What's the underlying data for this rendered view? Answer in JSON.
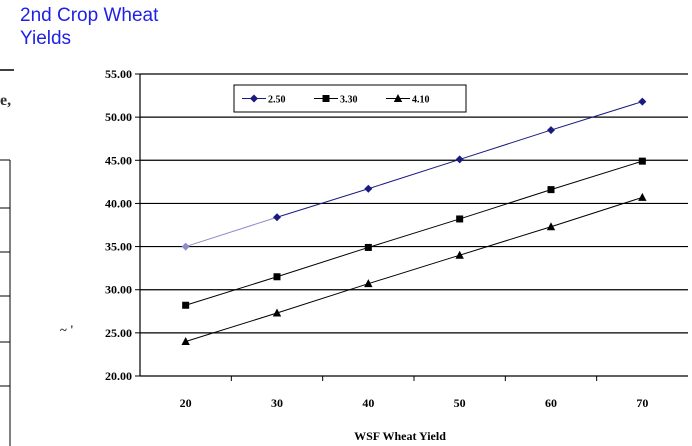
{
  "title": "2nd Crop Wheat\nYields",
  "edge_text": {
    "top": "e,",
    "middle": "~ '"
  },
  "chart_data": {
    "type": "line",
    "title": "2nd Crop Wheat Yields",
    "xlabel": "WSF Wheat Yield",
    "ylabel": "",
    "x": [
      20,
      30,
      40,
      50,
      60,
      70
    ],
    "ylim": [
      20,
      55
    ],
    "yticks": [
      "20.00",
      "25.00",
      "30.00",
      "35.00",
      "40.00",
      "45.00",
      "50.00",
      "55.00"
    ],
    "xticks": [
      "20",
      "30",
      "40",
      "50",
      "60",
      "70"
    ],
    "grid": "horizontal",
    "legend_position": "top-left",
    "series": [
      {
        "name": "2.50",
        "values": [
          35.0,
          38.4,
          41.7,
          45.1,
          48.5,
          51.8
        ],
        "marker": "diamond",
        "color": "#1a1a80"
      },
      {
        "name": "3.30",
        "values": [
          28.2,
          31.5,
          34.9,
          38.2,
          41.6,
          44.9
        ],
        "marker": "square",
        "color": "#000000"
      },
      {
        "name": "4.10",
        "values": [
          24.0,
          27.3,
          30.7,
          34.0,
          37.3,
          40.7
        ],
        "marker": "triangle",
        "color": "#000000"
      }
    ]
  }
}
